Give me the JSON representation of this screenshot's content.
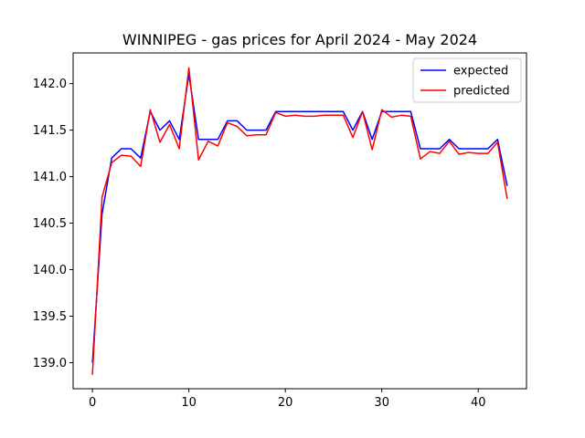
{
  "chart_data": {
    "type": "line",
    "title": "WINNIPEG - gas prices for April 2024 - May 2024",
    "xlabel": "",
    "ylabel": "",
    "xlim": [
      -2,
      45
    ],
    "ylim": [
      138.72,
      142.33
    ],
    "xticks": [
      0,
      10,
      20,
      30,
      40
    ],
    "yticks": [
      139.0,
      139.5,
      140.0,
      140.5,
      141.0,
      141.5,
      142.0
    ],
    "ytick_labels": [
      "139.0",
      "139.5",
      "140.0",
      "140.5",
      "141.0",
      "141.5",
      "142.0"
    ],
    "grid": false,
    "legend": "top-right",
    "x": [
      0,
      1,
      2,
      3,
      4,
      5,
      6,
      7,
      8,
      9,
      10,
      11,
      12,
      13,
      14,
      15,
      16,
      17,
      18,
      19,
      20,
      21,
      22,
      23,
      24,
      25,
      26,
      27,
      28,
      29,
      30,
      31,
      32,
      33,
      34,
      35,
      36,
      37,
      38,
      39,
      40,
      41,
      42,
      43
    ],
    "series": [
      {
        "name": "expected",
        "color": "#0000ff",
        "values": [
          139.0,
          140.6,
          141.2,
          141.3,
          141.3,
          141.2,
          141.7,
          141.5,
          141.6,
          141.4,
          142.1,
          141.4,
          141.4,
          141.4,
          141.6,
          141.6,
          141.5,
          141.5,
          141.5,
          141.7,
          141.7,
          141.7,
          141.7,
          141.7,
          141.7,
          141.7,
          141.7,
          141.5,
          141.7,
          141.4,
          141.7,
          141.7,
          141.7,
          141.7,
          141.3,
          141.3,
          141.3,
          141.4,
          141.3,
          141.3,
          141.3,
          141.3,
          141.4,
          140.9
        ]
      },
      {
        "name": "predicted",
        "color": "#ff0000",
        "values": [
          138.87,
          140.78,
          141.15,
          141.23,
          141.22,
          141.11,
          141.72,
          141.37,
          141.56,
          141.3,
          142.17,
          141.18,
          141.38,
          141.33,
          141.58,
          141.54,
          141.44,
          141.45,
          141.45,
          141.69,
          141.65,
          141.66,
          141.65,
          141.65,
          141.66,
          141.66,
          141.66,
          141.42,
          141.7,
          141.29,
          141.72,
          141.64,
          141.66,
          141.65,
          141.19,
          141.27,
          141.25,
          141.38,
          141.24,
          141.26,
          141.25,
          141.25,
          141.37,
          140.76
        ]
      }
    ]
  }
}
